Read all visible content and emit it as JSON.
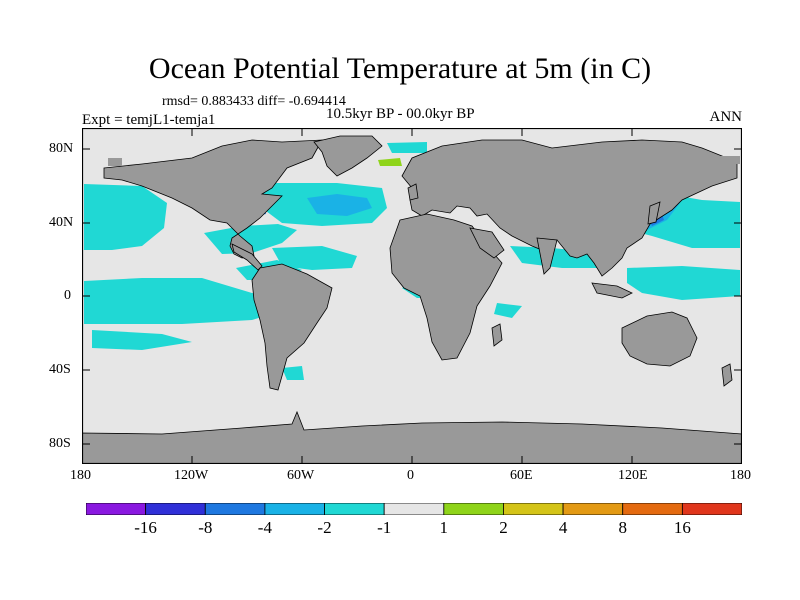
{
  "title": "Ocean Potential Temperature at 5m (in C)",
  "stats": "rmsd= 0.883433 diff= -0.694414",
  "experiment": "Expt = temjL1-temja1",
  "period": "10.5kyr BP - 00.0kyr BP",
  "season": "ANN",
  "lat_ticks": [
    "80N",
    "40N",
    "0",
    "40S",
    "80S"
  ],
  "lon_ticks": [
    "180",
    "120W",
    "60W",
    "0",
    "60E",
    "120E",
    "180"
  ],
  "colorbar": {
    "labels": [
      "-16",
      "-8",
      "-4",
      "-2",
      "-1",
      "1",
      "2",
      "4",
      "8",
      "16"
    ],
    "colors": [
      "#8a18e0",
      "#3030d8",
      "#1f78e0",
      "#1ab2e6",
      "#20d8d4",
      "#e6e6e6",
      "#8fd41a",
      "#d4c418",
      "#e39a14",
      "#e46a10",
      "#e0361c"
    ]
  },
  "colors": {
    "land": "#999999",
    "ocean_neutral": "#e6e6e6",
    "anomaly_neg1": "#20d8d4",
    "anomaly_neg2": "#1ab2e6",
    "anomaly_neg4": "#1f78e0",
    "anomaly_pos": "#8fd41a"
  }
}
